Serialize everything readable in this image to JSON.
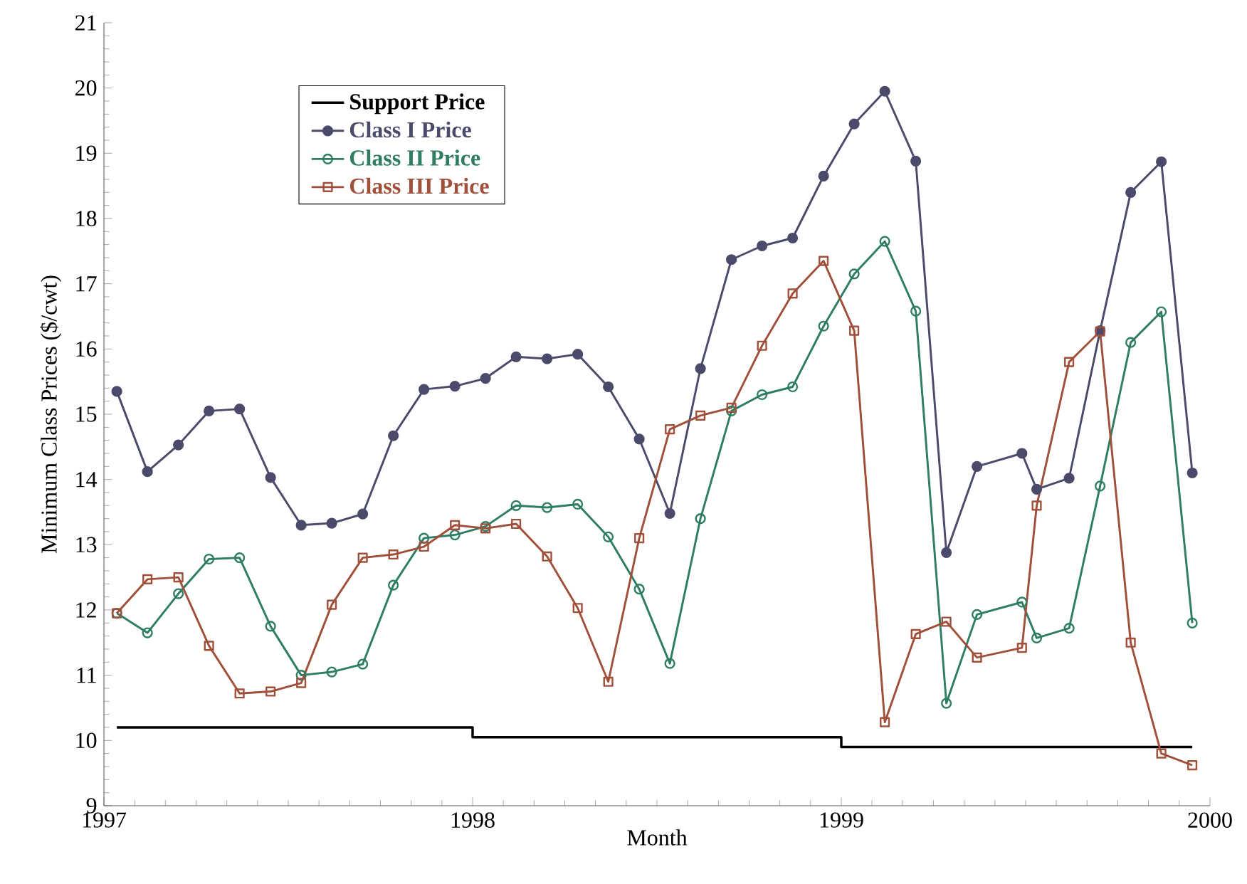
{
  "chart_data": {
    "type": "line",
    "xlabel": "Month",
    "ylabel": "Minimum Class Prices ($/cwt)",
    "xlim": [
      1997,
      2000
    ],
    "xticks": [
      1997,
      1998,
      1999,
      2000
    ],
    "ylim": [
      9,
      21
    ],
    "yticks": [
      9,
      10,
      11,
      12,
      13,
      14,
      15,
      16,
      17,
      18,
      19,
      20,
      21
    ],
    "legend": "top left",
    "grid": false,
    "series": [
      {
        "name": "Support Price",
        "color": "#000000",
        "marker": "none",
        "x": [
          1997.035,
          1998.0,
          1998.0,
          1999.0,
          1999.0,
          1999.952
        ],
        "values": [
          10.2,
          10.2,
          10.05,
          10.05,
          9.9,
          9.9
        ]
      },
      {
        "name": "Class I Price",
        "color": "#4a4a6a",
        "marker": "circle",
        "x": [
          1997.035,
          1997.118,
          1997.202,
          1997.285,
          1997.368,
          1997.452,
          1997.535,
          1997.618,
          1997.702,
          1997.785,
          1997.868,
          1997.952,
          1998.035,
          1998.118,
          1998.202,
          1998.285,
          1998.368,
          1998.452,
          1998.535,
          1998.618,
          1998.702,
          1998.785,
          1998.868,
          1998.952,
          1999.035,
          1999.118,
          1999.202,
          1999.285,
          1999.368,
          1999.49,
          1999.53,
          1999.618,
          1999.702,
          1999.785,
          1999.868,
          1999.952
        ],
        "values": [
          15.35,
          14.12,
          14.53,
          15.05,
          15.08,
          14.03,
          13.3,
          13.33,
          13.47,
          14.67,
          15.38,
          15.43,
          15.55,
          15.88,
          15.85,
          15.92,
          15.42,
          14.62,
          13.48,
          15.7,
          17.37,
          17.58,
          17.7,
          18.65,
          19.45,
          19.95,
          18.88,
          12.88,
          14.2,
          14.4,
          13.85,
          14.02,
          16.28,
          18.4,
          18.87,
          14.1
        ]
      },
      {
        "name": "Class II Price",
        "color": "#2e7d64",
        "marker": "circle",
        "x": [
          1997.035,
          1997.118,
          1997.202,
          1997.285,
          1997.368,
          1997.452,
          1997.535,
          1997.618,
          1997.702,
          1997.785,
          1997.868,
          1997.952,
          1998.035,
          1998.118,
          1998.202,
          1998.285,
          1998.368,
          1998.452,
          1998.535,
          1998.618,
          1998.702,
          1998.785,
          1998.868,
          1998.952,
          1999.035,
          1999.118,
          1999.202,
          1999.285,
          1999.368,
          1999.49,
          1999.53,
          1999.618,
          1999.702,
          1999.785,
          1999.868,
          1999.952
        ],
        "values": [
          11.95,
          11.65,
          12.25,
          12.78,
          12.8,
          11.75,
          11.0,
          11.05,
          11.17,
          12.38,
          13.1,
          13.15,
          13.28,
          13.6,
          13.57,
          13.62,
          13.12,
          12.32,
          11.18,
          13.4,
          15.05,
          15.3,
          15.42,
          16.35,
          17.15,
          17.65,
          16.58,
          10.57,
          11.93,
          12.12,
          11.57,
          11.72,
          13.9,
          16.1,
          16.57,
          11.8
        ]
      },
      {
        "name": "Class III Price",
        "color": "#a0503a",
        "marker": "square",
        "x": [
          1997.035,
          1997.118,
          1997.202,
          1997.285,
          1997.368,
          1997.452,
          1997.535,
          1997.618,
          1997.702,
          1997.785,
          1997.868,
          1997.952,
          1998.035,
          1998.118,
          1998.202,
          1998.285,
          1998.368,
          1998.452,
          1998.535,
          1998.618,
          1998.702,
          1998.785,
          1998.868,
          1998.952,
          1999.035,
          1999.118,
          1999.202,
          1999.285,
          1999.368,
          1999.49,
          1999.53,
          1999.618,
          1999.702,
          1999.785,
          1999.868,
          1999.952
        ],
        "values": [
          11.95,
          12.47,
          12.5,
          11.45,
          10.72,
          10.75,
          10.88,
          12.08,
          12.8,
          12.85,
          12.97,
          13.3,
          13.25,
          13.32,
          12.82,
          12.03,
          10.9,
          13.1,
          14.77,
          14.98,
          15.1,
          16.05,
          16.85,
          17.35,
          16.28,
          10.28,
          11.63,
          11.82,
          11.27,
          11.42,
          13.6,
          15.8,
          16.27,
          11.5,
          9.8,
          9.62
        ]
      }
    ]
  }
}
